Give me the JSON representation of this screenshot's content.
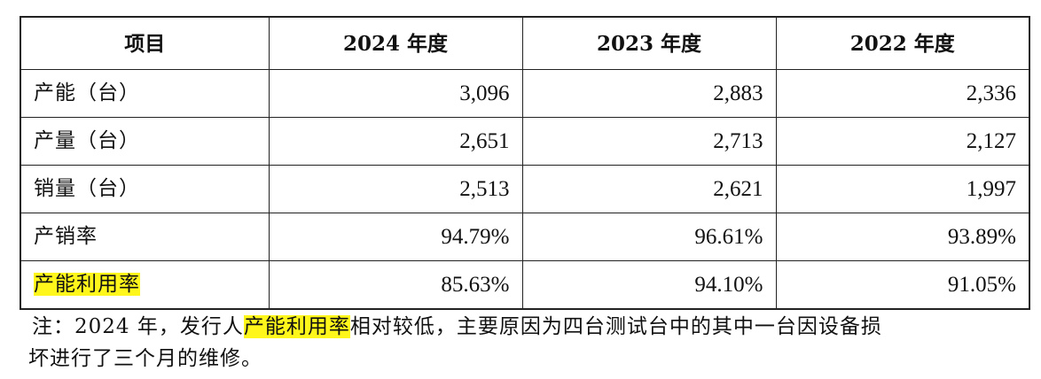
{
  "table": {
    "headers": [
      "项目",
      "2024 年度",
      "2023 年度",
      "2022 年度"
    ],
    "rows": [
      {
        "label": "产能（台）",
        "values": [
          "3,096",
          "2,883",
          "2,336"
        ]
      },
      {
        "label": "产量（台）",
        "values": [
          "2,651",
          "2,713",
          "2,127"
        ]
      },
      {
        "label": "销量（台）",
        "values": [
          "2,513",
          "2,621",
          "1,997"
        ]
      },
      {
        "label": "产销率",
        "values": [
          "94.79%",
          "96.61%",
          "93.89%"
        ]
      },
      {
        "label": "产能利用率",
        "values": [
          "85.63%",
          "94.10%",
          "91.05%"
        ]
      }
    ]
  },
  "note": {
    "prefix": "注：2024 年，发行人",
    "highlight": "产能利用率",
    "suffix": "相对较低，主要原因为四台测试台中的其中一台因设备损",
    "line2": "坏进行了三个月的维修。"
  },
  "colors": {
    "highlight": "#fff61c",
    "border": "#222222",
    "text": "#111111"
  }
}
